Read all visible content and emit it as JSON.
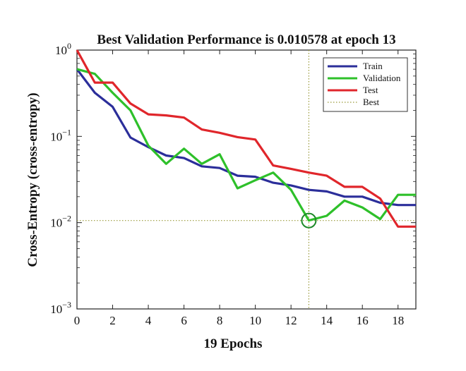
{
  "chart_data": {
    "type": "line",
    "title": "Best Validation Performance is 0.010578 at epoch 13",
    "xlabel": "19 Epochs",
    "ylabel": "Cross-Entropy (cross-entropy)",
    "yscale": "log",
    "xlim": [
      0,
      19
    ],
    "ylim": [
      0.001,
      1
    ],
    "x_ticks": [
      0,
      2,
      4,
      6,
      8,
      10,
      12,
      14,
      16,
      18
    ],
    "y_ticks": [
      {
        "value": 1,
        "base": "10",
        "exp": "0"
      },
      {
        "value": 0.1,
        "base": "10",
        "exp": "−1"
      },
      {
        "value": 0.01,
        "base": "10",
        "exp": "−2"
      },
      {
        "value": 0.001,
        "base": "10",
        "exp": "−3"
      }
    ],
    "x": [
      0,
      1,
      2,
      3,
      4,
      5,
      6,
      7,
      8,
      9,
      10,
      11,
      12,
      13,
      14,
      15,
      16,
      17,
      18,
      19
    ],
    "series": [
      {
        "name": "Train",
        "color": "#2b2e9a",
        "values": [
          0.6,
          0.32,
          0.22,
          0.097,
          0.075,
          0.06,
          0.056,
          0.045,
          0.043,
          0.035,
          0.034,
          0.029,
          0.027,
          0.024,
          0.023,
          0.02,
          0.02,
          0.017,
          0.016,
          0.016
        ]
      },
      {
        "name": "Validation",
        "color": "#2ec02a",
        "values": [
          0.6,
          0.53,
          0.32,
          0.2,
          0.078,
          0.048,
          0.072,
          0.048,
          0.062,
          0.025,
          0.031,
          0.038,
          0.024,
          0.0106,
          0.012,
          0.018,
          0.015,
          0.011,
          0.021,
          0.021
        ]
      },
      {
        "name": "Test",
        "color": "#e0262b",
        "values": [
          1.0,
          0.42,
          0.42,
          0.24,
          0.18,
          0.175,
          0.165,
          0.12,
          0.11,
          0.098,
          0.092,
          0.046,
          0.042,
          0.038,
          0.035,
          0.026,
          0.026,
          0.019,
          0.009,
          0.009
        ]
      }
    ],
    "best": {
      "name": "Best",
      "epoch": 13,
      "value": 0.010578,
      "color": "#9a9a3a"
    },
    "legend_position": "top-right",
    "grid": false
  }
}
